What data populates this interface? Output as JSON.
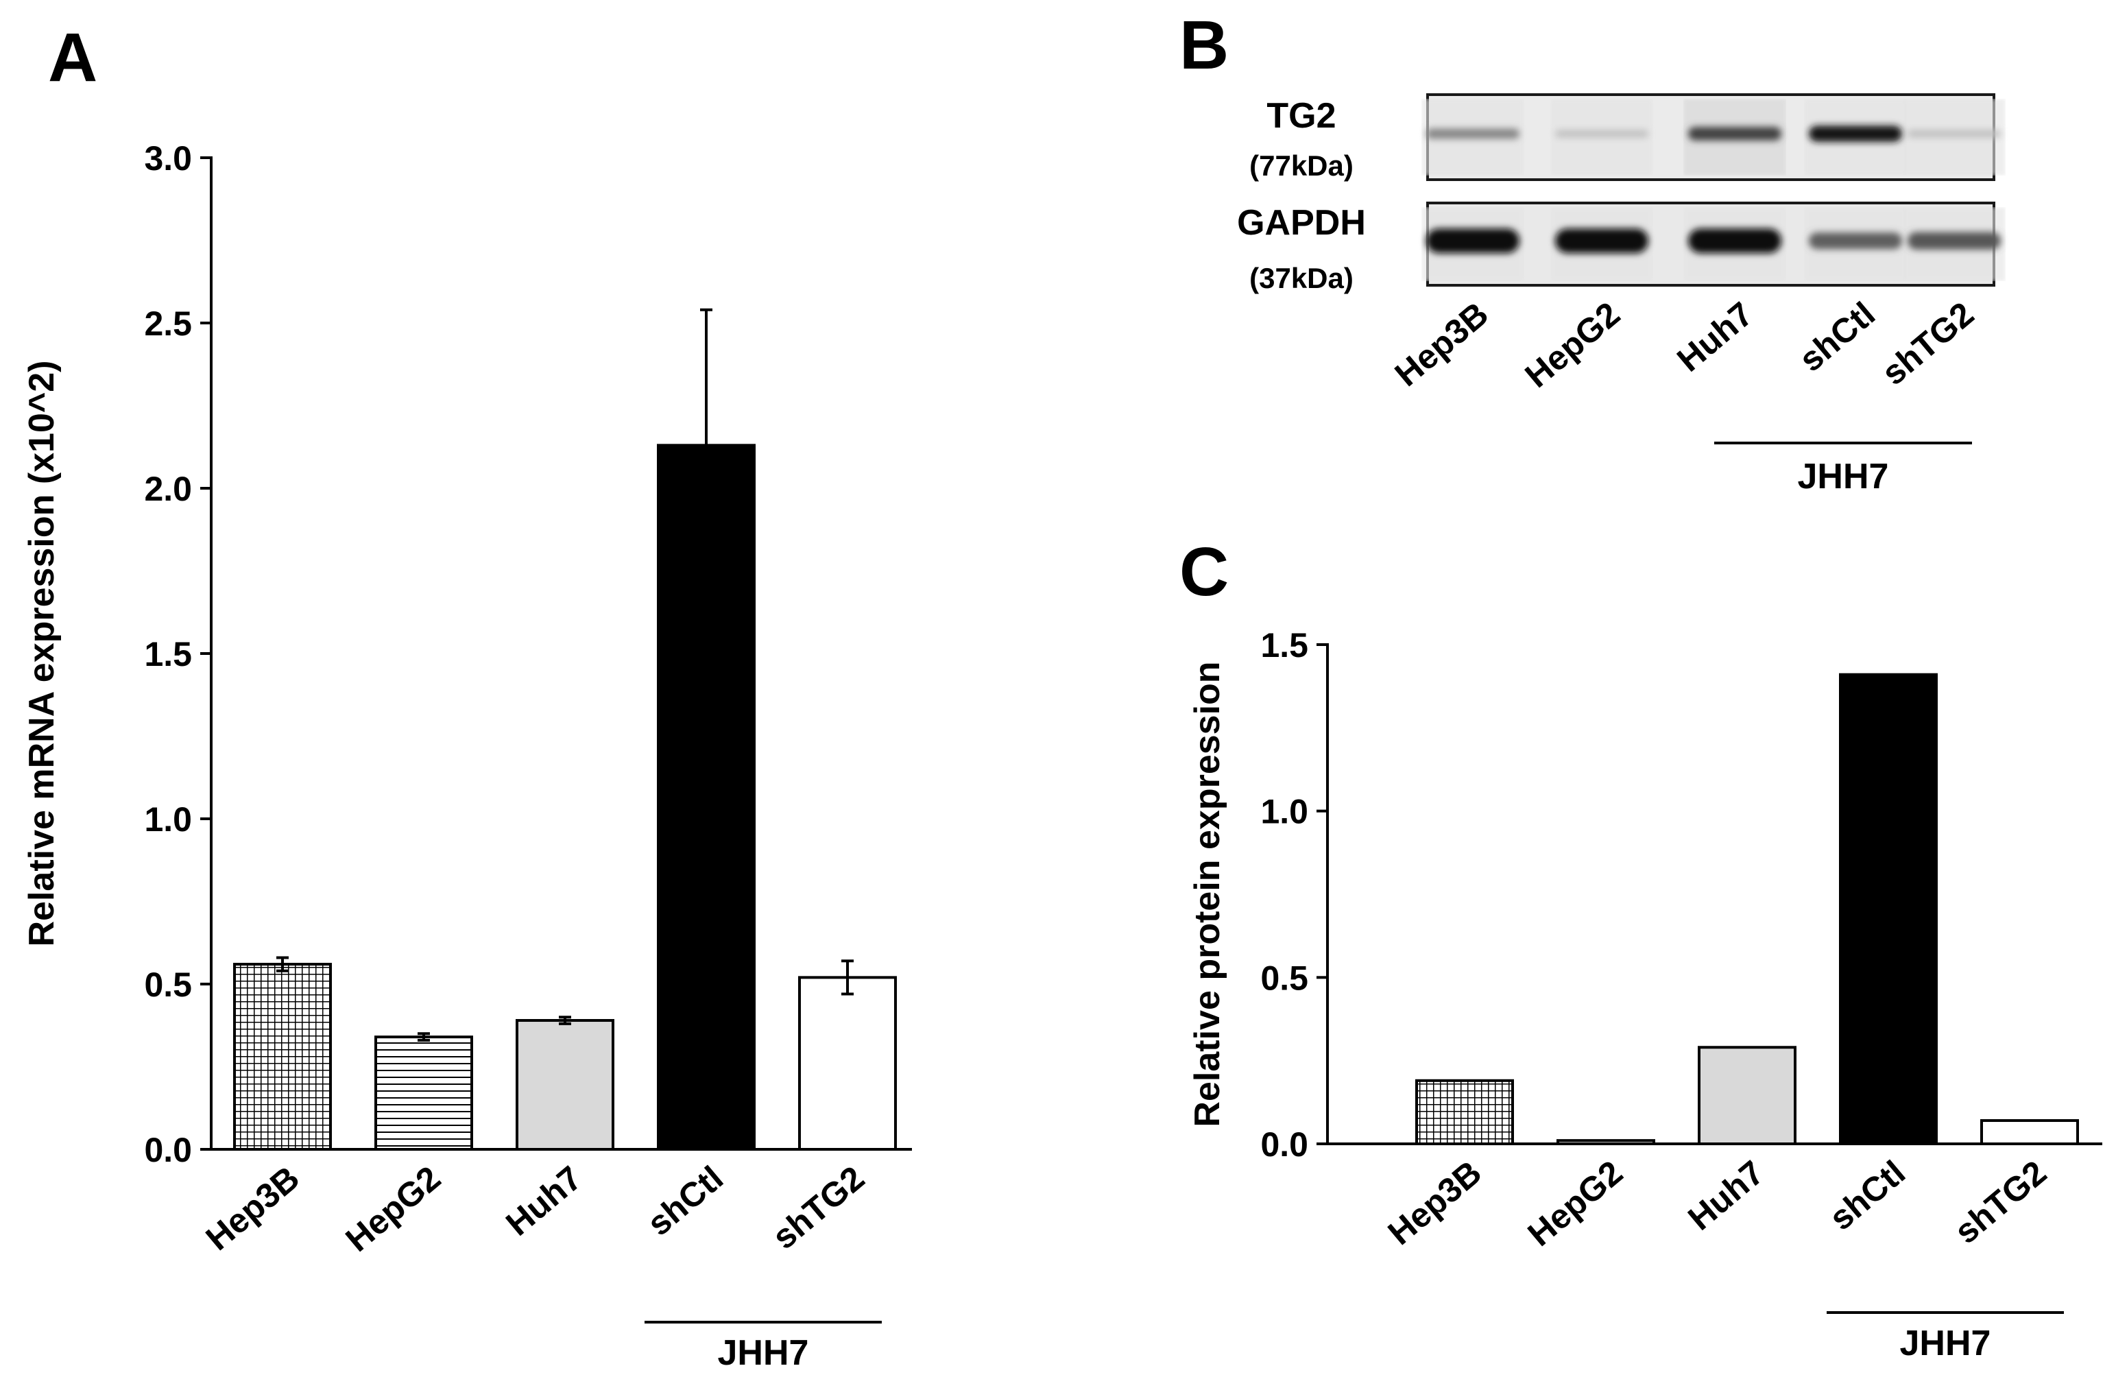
{
  "panels": {
    "a": "A",
    "b": "B",
    "c": "C"
  },
  "chart_data": [
    {
      "panel": "A",
      "type": "bar",
      "ylabel": "Relative mRNA expression (x10^2)",
      "xlabel": "",
      "ylim": [
        0,
        3.0
      ],
      "yticks": [
        "0.0",
        "0.5",
        "1.0",
        "1.5",
        "2.0",
        "2.5",
        "3.0"
      ],
      "categories": [
        "Hep3B",
        "HepG2",
        "Huh7",
        "shCtl",
        "shTG2"
      ],
      "values": [
        0.56,
        0.34,
        0.39,
        2.13,
        0.52
      ],
      "errors": [
        0.02,
        0.01,
        0.01,
        0.41,
        0.05
      ],
      "fills": [
        "grid",
        "hlines",
        "#d9d9d9",
        "#000000",
        "#ffffff"
      ],
      "group": {
        "label": "JHH7",
        "members": [
          "shCtl",
          "shTG2"
        ]
      },
      "grid": false
    },
    {
      "panel": "C",
      "type": "bar",
      "ylabel": "Relative protein expression",
      "xlabel": "",
      "ylim": [
        0,
        1.5
      ],
      "yticks": [
        "0.0",
        "0.5",
        "1.0",
        "1.5"
      ],
      "categories": [
        "Hep3B",
        "HepG2",
        "Huh7",
        "shCtl",
        "shTG2"
      ],
      "values": [
        0.19,
        0.01,
        0.29,
        1.41,
        0.07
      ],
      "fills": [
        "grid",
        "#d9d9d9",
        "#d9d9d9",
        "#000000",
        "#ffffff"
      ],
      "group": {
        "label": "JHH7",
        "members": [
          "shCtl",
          "shTG2"
        ]
      },
      "grid": false
    }
  ],
  "western_blot": {
    "panel": "B",
    "rows": [
      {
        "label": "TG2",
        "sublabel": "(77kDa)",
        "band_intensity": [
          0.35,
          0.04,
          0.7,
          0.95,
          0.05
        ]
      },
      {
        "label": "GAPDH",
        "sublabel": "(37kDa)",
        "band_intensity": [
          1.0,
          1.0,
          1.0,
          0.55,
          0.6
        ]
      }
    ],
    "lanes": [
      "Hep3B",
      "HepG2",
      "Huh7",
      "shCtl",
      "shTG2"
    ],
    "group": {
      "label": "JHH7",
      "members": [
        "shCtl",
        "shTG2"
      ]
    }
  }
}
